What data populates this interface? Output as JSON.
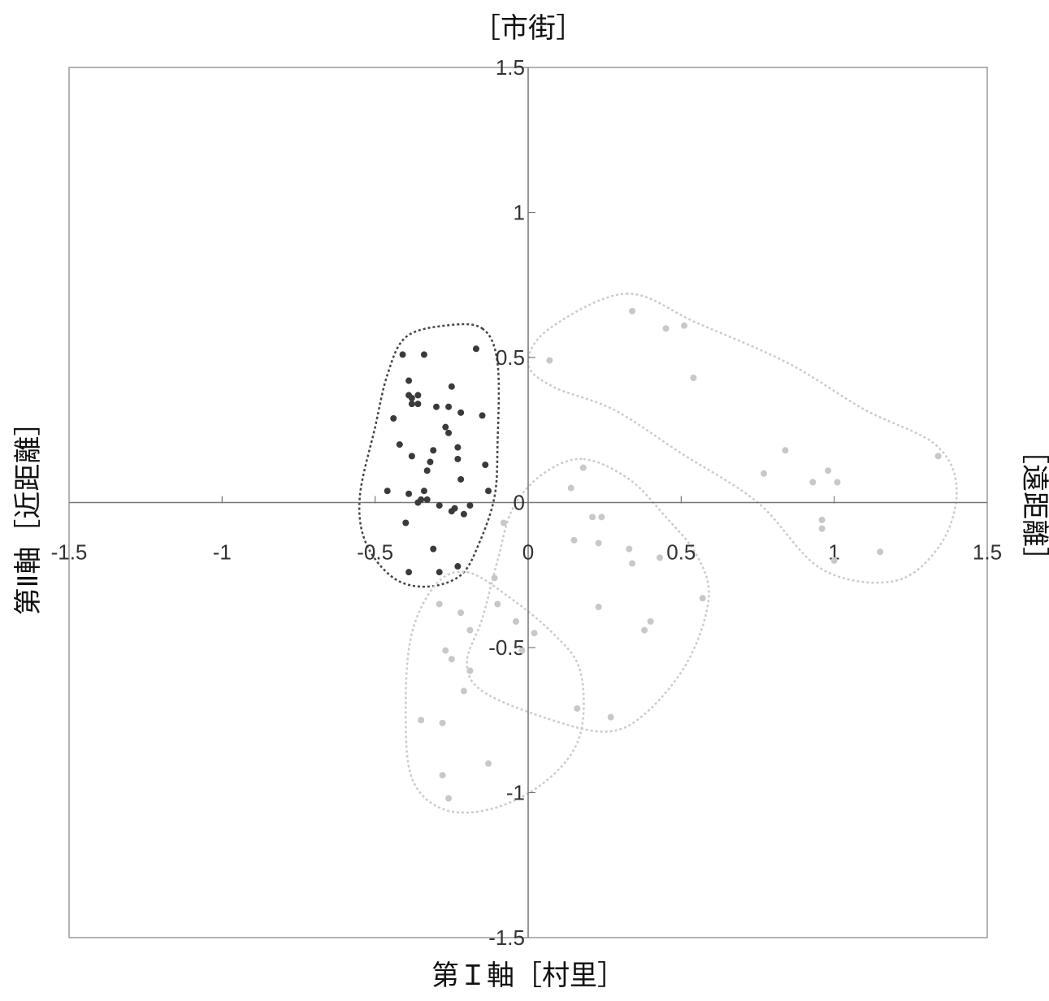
{
  "chart_data": {
    "type": "scatter",
    "title": "",
    "labels": {
      "top": "［市街］",
      "bottom": "第Ｉ軸［村里］",
      "left": "第Ⅱ軸［近距離］",
      "right": "［遠距離］"
    },
    "xlim": [
      -1.5,
      1.5
    ],
    "ylim": [
      -1.5,
      1.5
    ],
    "x_ticks": [
      {
        "value": -1.5,
        "label": "-1.5"
      },
      {
        "value": -1,
        "label": "-1"
      },
      {
        "value": -0.5,
        "label": "-0.5"
      },
      {
        "value": 0,
        "label": "0"
      },
      {
        "value": 0.5,
        "label": "0.5"
      },
      {
        "value": 1,
        "label": "1"
      },
      {
        "value": 1.5,
        "label": "1.5"
      }
    ],
    "y_ticks": [
      {
        "value": 1.5,
        "label": "1.5"
      },
      {
        "value": 1,
        "label": "1"
      },
      {
        "value": 0.5,
        "label": "0.5"
      },
      {
        "value": 0,
        "label": "0"
      },
      {
        "value": -0.5,
        "label": "-0.5"
      },
      {
        "value": -1,
        "label": "-1"
      },
      {
        "value": -1.5,
        "label": "-1.5"
      }
    ],
    "grid": false,
    "legend": "none",
    "series": [
      {
        "color": "#3a3a3a",
        "points": [
          [
            -0.41,
            0.51
          ],
          [
            -0.34,
            0.51
          ],
          [
            -0.39,
            0.42
          ],
          [
            -0.39,
            0.37
          ],
          [
            -0.38,
            0.36
          ],
          [
            -0.36,
            0.37
          ],
          [
            -0.38,
            0.34
          ],
          [
            -0.36,
            0.34
          ],
          [
            -0.44,
            0.29
          ],
          [
            -0.3,
            0.33
          ],
          [
            -0.26,
            0.33
          ],
          [
            -0.25,
            0.4
          ],
          [
            -0.22,
            0.31
          ],
          [
            -0.15,
            0.3
          ],
          [
            -0.27,
            0.26
          ],
          [
            -0.26,
            0.24
          ],
          [
            -0.23,
            0.19
          ],
          [
            -0.42,
            0.2
          ],
          [
            -0.38,
            0.16
          ],
          [
            -0.31,
            0.18
          ],
          [
            -0.32,
            0.14
          ],
          [
            -0.23,
            0.15
          ],
          [
            -0.14,
            0.13
          ],
          [
            -0.33,
            0.11
          ],
          [
            -0.22,
            0.08
          ],
          [
            -0.46,
            0.04
          ],
          [
            -0.39,
            0.03
          ],
          [
            -0.34,
            0.04
          ],
          [
            -0.35,
            0.01
          ],
          [
            -0.33,
            0.01
          ],
          [
            -0.36,
            0.0
          ],
          [
            -0.29,
            -0.01
          ],
          [
            -0.24,
            -0.02
          ],
          [
            -0.19,
            -0.01
          ],
          [
            -0.13,
            0.04
          ],
          [
            -0.4,
            -0.07
          ],
          [
            -0.25,
            -0.03
          ],
          [
            -0.21,
            -0.04
          ],
          [
            -0.31,
            -0.16
          ],
          [
            -0.39,
            -0.24
          ],
          [
            -0.29,
            -0.24
          ],
          [
            -0.23,
            -0.22
          ],
          [
            -0.17,
            0.53
          ]
        ]
      },
      {
        "color": "#c8c8c8",
        "points": [
          [
            0.07,
            0.49
          ],
          [
            0.34,
            0.66
          ],
          [
            0.45,
            0.6
          ],
          [
            0.51,
            0.61
          ],
          [
            0.54,
            0.43
          ],
          [
            0.84,
            0.18
          ],
          [
            0.77,
            0.1
          ],
          [
            0.93,
            0.07
          ],
          [
            0.98,
            0.11
          ],
          [
            1.01,
            0.07
          ],
          [
            1.34,
            0.16
          ],
          [
            0.96,
            -0.06
          ],
          [
            0.96,
            -0.09
          ],
          [
            1.0,
            -0.2
          ],
          [
            1.15,
            -0.17
          ],
          [
            0.18,
            0.12
          ],
          [
            0.14,
            0.05
          ],
          [
            0.21,
            -0.05
          ],
          [
            0.24,
            -0.05
          ],
          [
            0.15,
            -0.13
          ],
          [
            0.23,
            -0.14
          ],
          [
            0.33,
            -0.16
          ],
          [
            0.34,
            -0.21
          ],
          [
            0.43,
            -0.19
          ],
          [
            0.57,
            -0.33
          ],
          [
            0.23,
            -0.36
          ],
          [
            0.38,
            -0.44
          ],
          [
            0.4,
            -0.41
          ],
          [
            0.27,
            -0.74
          ],
          [
            0.16,
            -0.71
          ],
          [
            -0.08,
            -0.07
          ],
          [
            -0.11,
            -0.26
          ],
          [
            -0.1,
            -0.35
          ],
          [
            -0.04,
            -0.41
          ],
          [
            0.02,
            -0.45
          ],
          [
            -0.02,
            -0.51
          ],
          [
            -0.29,
            -0.35
          ],
          [
            -0.22,
            -0.38
          ],
          [
            -0.19,
            -0.44
          ],
          [
            -0.27,
            -0.51
          ],
          [
            -0.25,
            -0.54
          ],
          [
            -0.19,
            -0.58
          ],
          [
            -0.21,
            -0.65
          ],
          [
            -0.35,
            -0.75
          ],
          [
            -0.28,
            -0.76
          ],
          [
            -0.28,
            -0.94
          ],
          [
            -0.26,
            -1.02
          ],
          [
            -0.13,
            -0.9
          ]
        ]
      }
    ],
    "regions": [
      {
        "color": "#444444",
        "outline": [
          [
            -0.15,
            0.6
          ],
          [
            -0.1,
            0.48
          ],
          [
            -0.1,
            0.2
          ],
          [
            -0.11,
            0.02
          ],
          [
            -0.16,
            -0.14
          ],
          [
            -0.22,
            -0.25
          ],
          [
            -0.33,
            -0.29
          ],
          [
            -0.44,
            -0.26
          ],
          [
            -0.53,
            -0.14
          ],
          [
            -0.55,
            0.02
          ],
          [
            -0.5,
            0.26
          ],
          [
            -0.46,
            0.44
          ],
          [
            -0.4,
            0.57
          ],
          [
            -0.27,
            0.61
          ]
        ]
      },
      {
        "color": "#cccccc",
        "outline": [
          [
            0.32,
            0.72
          ],
          [
            0.55,
            0.62
          ],
          [
            0.85,
            0.48
          ],
          [
            1.1,
            0.32
          ],
          [
            1.33,
            0.2
          ],
          [
            1.4,
            0.05
          ],
          [
            1.35,
            -0.14
          ],
          [
            1.2,
            -0.27
          ],
          [
            0.96,
            -0.23
          ],
          [
            0.75,
            0.0
          ],
          [
            0.5,
            0.17
          ],
          [
            0.28,
            0.32
          ],
          [
            0.08,
            0.4
          ],
          [
            0.0,
            0.48
          ],
          [
            0.07,
            0.6
          ]
        ]
      },
      {
        "color": "#cccccc",
        "outline": [
          [
            0.18,
            0.15
          ],
          [
            0.33,
            0.08
          ],
          [
            0.45,
            -0.05
          ],
          [
            0.55,
            -0.18
          ],
          [
            0.59,
            -0.33
          ],
          [
            0.52,
            -0.55
          ],
          [
            0.38,
            -0.73
          ],
          [
            0.25,
            -0.79
          ],
          [
            0.05,
            -0.74
          ],
          [
            -0.15,
            -0.65
          ],
          [
            -0.2,
            -0.55
          ],
          [
            -0.15,
            -0.4
          ],
          [
            -0.1,
            -0.2
          ],
          [
            -0.05,
            -0.02
          ],
          [
            0.05,
            0.1
          ]
        ]
      },
      {
        "color": "#cccccc",
        "outline": [
          [
            -0.2,
            -0.24
          ],
          [
            -0.07,
            -0.32
          ],
          [
            0.08,
            -0.45
          ],
          [
            0.17,
            -0.58
          ],
          [
            0.17,
            -0.8
          ],
          [
            0.07,
            -0.95
          ],
          [
            -0.1,
            -1.05
          ],
          [
            -0.27,
            -1.06
          ],
          [
            -0.38,
            -0.95
          ],
          [
            -0.4,
            -0.7
          ],
          [
            -0.38,
            -0.45
          ],
          [
            -0.3,
            -0.28
          ]
        ]
      }
    ]
  }
}
